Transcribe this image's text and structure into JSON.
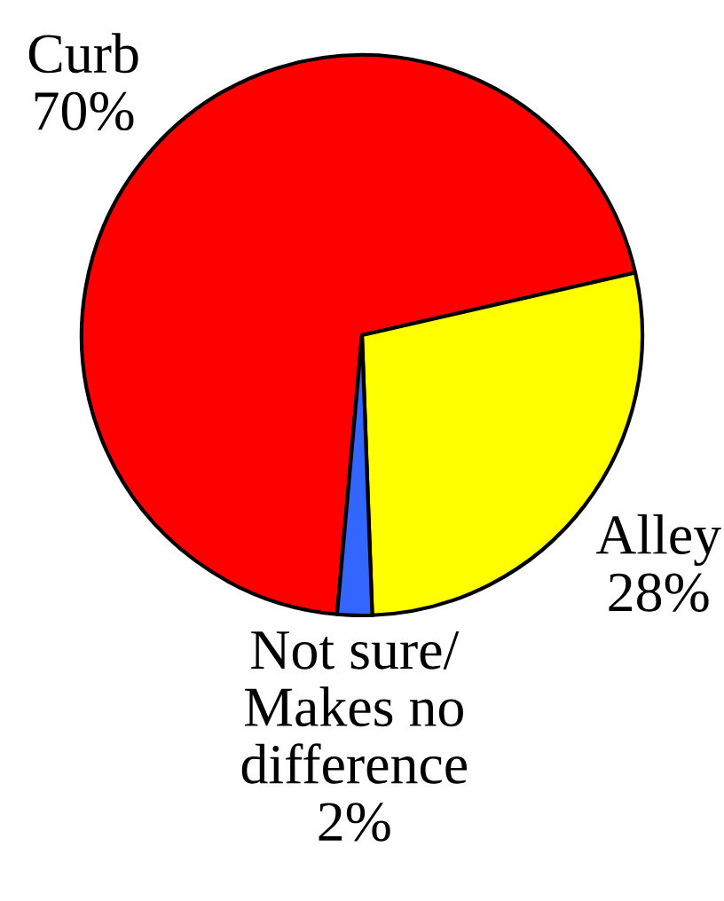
{
  "chart_data": {
    "type": "pie",
    "categories": [
      "Curb",
      "Alley",
      "Not sure/\nMakes no\ndifference"
    ],
    "values": [
      70,
      28,
      2
    ],
    "value_labels": [
      "70%",
      "28%",
      "2%"
    ],
    "colors": [
      "#ff0000",
      "#ffff00",
      "#3366ff"
    ]
  }
}
